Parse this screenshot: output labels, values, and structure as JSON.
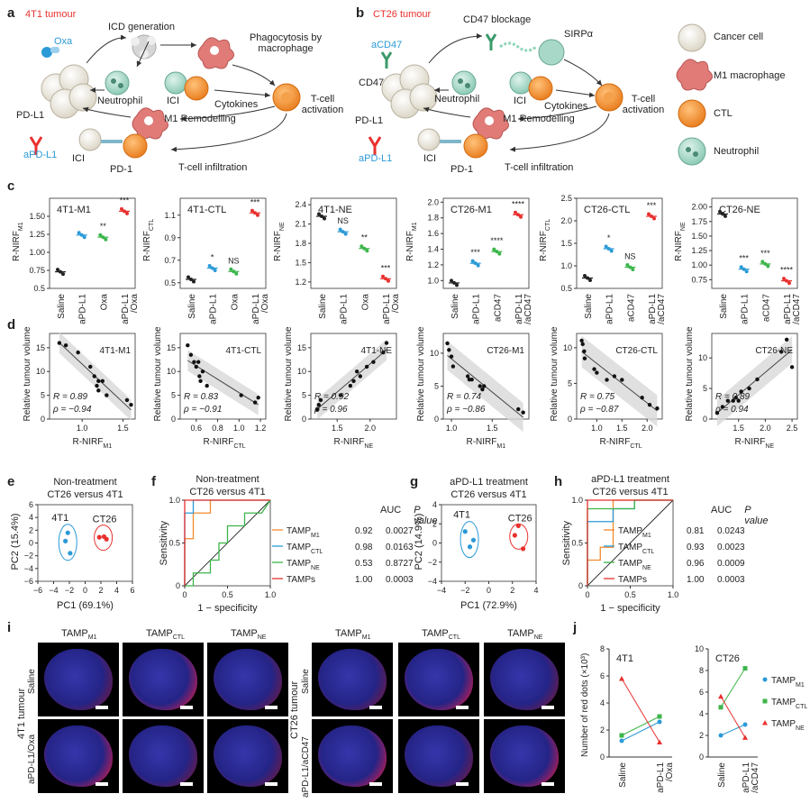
{
  "panel_letters": [
    "a",
    "b",
    "c",
    "d",
    "e",
    "f",
    "g",
    "h",
    "i",
    "j"
  ],
  "panel_a": {
    "title": "4T1 tumour",
    "labels": {
      "oxa": "Oxa",
      "icd": "ICD generation",
      "phago": "Phagocytosis by macrophage",
      "neutrophil": "Neutrophil",
      "ici": "ICI",
      "tcell_act": "T-cell activation",
      "cytokines": "Cytokines",
      "pdl1": "PD-L1",
      "m1": "M1 Remodelling",
      "apdl1": "aPD-L1",
      "ici2": "ICI",
      "pd1": "PD-1",
      "tcell_inf": "T-cell infiltration"
    }
  },
  "panel_b": {
    "title": "CT26 tumour",
    "labels": {
      "cd47block": "CD47 blockage",
      "sirpa": "SIRPα",
      "acd47": "aCD47",
      "cd47": "CD47",
      "neutrophil": "Neutrophil",
      "ici": "ICI",
      "tcell_act": "T-cell activation",
      "cytokines": "Cytokines",
      "pdl1": "PD-L1",
      "m1": "M1 Remodelling",
      "apdl1": "aPD-L1",
      "ici2": "ICI",
      "pd1": "PD-1",
      "tcell_inf": "T-cell infiltration"
    }
  },
  "legend_cells": [
    {
      "label": "Cancer cell",
      "color": "#e9e4d6"
    },
    {
      "label": "M1 macrophage",
      "color": "#e07b78"
    },
    {
      "label": "CTL",
      "color": "#f28a2e"
    },
    {
      "label": "Neutrophil",
      "color": "#a8d8c8"
    }
  ],
  "group_colors": {
    "saline": "#222222",
    "apdl1": "#2b9ad6",
    "agent": "#3cb54a",
    "combo": "#e8312f"
  },
  "chart_data": [
    {
      "type": "scatter",
      "title": "4T1-M1",
      "ylabel": "R-NIRF_M1",
      "ylim": [
        0.5,
        1.75
      ],
      "yticks": [
        "0.5",
        "0.75",
        "1.00",
        "1.25",
        "1.50"
      ],
      "categories": [
        "Saline",
        "aPD-L1",
        "Oxa",
        "aPD-L1 /Oxa"
      ],
      "values": [
        0.73,
        1.24,
        1.21,
        1.57
      ],
      "sig": [
        "",
        "",
        "**",
        "***"
      ]
    },
    {
      "type": "scatter",
      "title": "4T1-CTL",
      "ylabel": "R-NIRF_CTL",
      "ylim": [
        0.45,
        1.25
      ],
      "yticks": [
        "0.5",
        "0.7",
        "0.9",
        "1.1"
      ],
      "categories": [
        "Saline",
        "aPD-L1",
        "Oxa",
        "aPD-L1 /Oxa"
      ],
      "values": [
        0.53,
        0.63,
        0.6,
        1.12
      ],
      "sig": [
        "",
        "*",
        "NS",
        "***"
      ]
    },
    {
      "type": "scatter",
      "title": "4T1-NE",
      "ylabel": "R-NIRF_NE",
      "ylim": [
        1.1,
        2.5
      ],
      "yticks": [
        "1.2",
        "1.5",
        "1.8",
        "2.1",
        "2.4"
      ],
      "categories": [
        "Saline",
        "aPD-L1",
        "Oxa",
        "aPD-L1 /Oxa"
      ],
      "values": [
        2.22,
        1.98,
        1.72,
        1.25
      ],
      "sig": [
        "",
        "NS",
        "**",
        "***"
      ]
    },
    {
      "type": "scatter",
      "title": "CT26-M1",
      "ylabel": "R-NIRF_M1",
      "ylim": [
        0.9,
        2.05
      ],
      "yticks": [
        "1.0",
        "1.2",
        "1.4",
        "1.6",
        "1.8",
        "2.0"
      ],
      "categories": [
        "Saline",
        "aPD-L1",
        "aCD47",
        "aPD-L1 /aCD47"
      ],
      "values": [
        0.97,
        1.22,
        1.37,
        1.84
      ],
      "sig": [
        "",
        "***",
        "****",
        "****"
      ]
    },
    {
      "type": "scatter",
      "title": "CT26-CTL",
      "ylabel": "R-NIRF_CTL",
      "ylim": [
        0.5,
        2.5
      ],
      "yticks": [
        "0.5",
        "1.0",
        "1.5",
        "2.0",
        "2.5"
      ],
      "categories": [
        "Saline",
        "aPD-L1",
        "aCD47",
        "aPD-L1 /aCD47"
      ],
      "values": [
        0.73,
        1.38,
        0.97,
        2.1
      ],
      "sig": [
        "",
        "*",
        "NS",
        "***"
      ]
    },
    {
      "type": "scatter",
      "title": "CT26-NE",
      "ylabel": "R-NIRF_NE",
      "ylim": [
        0.6,
        2.15
      ],
      "yticks": [
        "0.75",
        "1.00",
        "1.25",
        "1.50",
        "1.75",
        "2.00"
      ],
      "categories": [
        "Saline",
        "aPD-L1",
        "aCD47",
        "aPD-L1 /aCD47"
      ],
      "values": [
        1.88,
        0.93,
        1.02,
        0.73
      ],
      "sig": [
        "",
        "***",
        "***",
        "****"
      ]
    },
    {
      "type": "scatter",
      "title": "4T1-M1",
      "xlabel": "R-NIRF_M1",
      "ylabel": "Relative tumour volume",
      "xlim": [
        0.6,
        1.65
      ],
      "ylim": [
        0,
        18
      ],
      "xticks": [
        "1.0",
        "1.5"
      ],
      "yticks": [
        "0",
        "5",
        "10",
        "15"
      ],
      "x": [
        0.72,
        0.8,
        0.95,
        1.1,
        1.15,
        1.18,
        1.2,
        1.2,
        1.25,
        1.3,
        1.55,
        1.6
      ],
      "y": [
        16,
        15.5,
        14,
        11,
        9,
        7,
        8,
        6,
        8,
        5,
        4,
        3
      ],
      "R": "R = 0.89",
      "rho": "ρ = −0.94"
    },
    {
      "type": "scatter",
      "title": "4T1-CTL",
      "xlabel": "R-NIRF_CTL",
      "ylabel": "Relative tumour volume",
      "xlim": [
        0.45,
        1.25
      ],
      "ylim": [
        0,
        18
      ],
      "xticks": [
        "0.6",
        "0.8",
        "1.0",
        "1.2"
      ],
      "yticks": [
        "0",
        "5",
        "10",
        "15"
      ],
      "x": [
        0.52,
        0.55,
        0.58,
        0.6,
        0.62,
        0.63,
        0.64,
        0.66,
        0.7,
        1.02,
        1.15,
        1.18
      ],
      "y": [
        15.5,
        13.5,
        12,
        11,
        12,
        9,
        8,
        10,
        7,
        5,
        3.5,
        4.5
      ],
      "R": "R = 0.83",
      "rho": "ρ = −0.91"
    },
    {
      "type": "scatter",
      "title": "4T1-NE",
      "xlabel": "R-NIRF_NE",
      "ylabel": "Relative tumour volume",
      "xlim": [
        1.1,
        2.4
      ],
      "ylim": [
        0,
        18
      ],
      "xticks": [
        "1.5",
        "2.0"
      ],
      "yticks": [
        "0",
        "5",
        "10",
        "15"
      ],
      "x": [
        1.2,
        1.22,
        1.25,
        1.55,
        1.7,
        1.75,
        1.8,
        1.85,
        1.95,
        2.05,
        2.2,
        2.25
      ],
      "y": [
        2,
        3,
        4,
        5,
        7,
        8,
        10,
        9,
        11,
        12,
        14,
        16
      ],
      "R": "R = 0.92",
      "rho": "ρ = 0.96"
    },
    {
      "type": "scatter",
      "title": "CT26-M1",
      "xlabel": "R-NIRF_M1",
      "ylabel": "Relative tumour volume",
      "xlim": [
        0.9,
        1.95
      ],
      "ylim": [
        0,
        13
      ],
      "xticks": [
        "1.0",
        "1.5"
      ],
      "yticks": [
        "0",
        "5",
        "10"
      ],
      "x": [
        0.95,
        0.97,
        1.0,
        1.02,
        1.2,
        1.22,
        1.25,
        1.35,
        1.38,
        1.4,
        1.82,
        1.88
      ],
      "y": [
        11.5,
        10.5,
        9.5,
        8,
        6.5,
        6,
        6,
        5,
        4.5,
        5,
        1.5,
        1
      ],
      "R": "R = 0.74",
      "rho": "ρ = −0.86"
    },
    {
      "type": "scatter",
      "title": "CT26-CTL",
      "xlabel": "R-NIRF_CTL",
      "ylabel": "Relative tumour volume",
      "xlim": [
        0.6,
        2.3
      ],
      "ylim": [
        0,
        12
      ],
      "xticks": [
        "1.0",
        "1.5",
        "2.0"
      ],
      "yticks": [
        "0",
        "5",
        "10"
      ],
      "x": [
        0.7,
        0.72,
        0.75,
        0.76,
        0.95,
        1.0,
        1.2,
        1.35,
        1.5,
        1.9,
        2.05,
        2.2
      ],
      "y": [
        11,
        10.5,
        9.5,
        8.5,
        7,
        6.5,
        5.5,
        6,
        5.5,
        3,
        2,
        1.5
      ],
      "R": "R = 0.75",
      "rho": "ρ = −0.87"
    },
    {
      "type": "scatter",
      "title": "CT26-NE",
      "xlabel": "R-NIRF_NE",
      "ylabel": "Relative tumour volume",
      "xlim": [
        1.0,
        2.6
      ],
      "ylim": [
        0,
        14
      ],
      "xticks": [
        "1.5",
        "2.0",
        "2.5"
      ],
      "yticks": [
        "0",
        "5",
        "10"
      ],
      "x": [
        1.1,
        1.2,
        1.3,
        1.4,
        1.45,
        1.5,
        1.55,
        1.7,
        1.85,
        2.3,
        2.4,
        2.5
      ],
      "y": [
        1,
        2,
        3,
        3,
        3.5,
        3,
        4.5,
        5,
        6.5,
        11,
        13,
        8.5
      ],
      "R": "R = 0.89",
      "rho": "ρ = 0.94"
    },
    {
      "type": "scatter",
      "title": "Non-treatment CT26 versus 4T1",
      "xlabel": "PC1 (69.1%)",
      "ylabel": "PC2 (15.4%)",
      "xlim": [
        -6,
        6
      ],
      "ylim": [
        -6,
        6
      ],
      "xticks": [
        "−6",
        "−4",
        "−2",
        "0",
        "2",
        "4",
        "6"
      ],
      "yticks": [
        "−6",
        "−4",
        "−2",
        "0",
        "2",
        "4",
        "6"
      ],
      "series": [
        {
          "name": "4T1",
          "x": [
            -2.2,
            -1.9,
            -2.5
          ],
          "y": [
            1.6,
            -1.6,
            0.3
          ]
        },
        {
          "name": "CT26",
          "x": [
            1.8,
            2.4,
            2.7
          ],
          "y": [
            0.9,
            1.0,
            0.6
          ]
        }
      ]
    },
    {
      "type": "line",
      "title": "Non-treatment CT26 versus 4T1",
      "xlabel": "1 − specificity",
      "ylabel": "Sensitivity",
      "xlim": [
        0,
        1
      ],
      "ylim": [
        0,
        1
      ],
      "xticks": [
        "0",
        "0.5",
        "1.0"
      ],
      "yticks": [
        "0",
        "0.5",
        "1.0"
      ],
      "series": [
        {
          "name": "TAMP_M1",
          "auc": "0.92",
          "p": "0.0027"
        },
        {
          "name": "TAMP_CTL",
          "auc": "0.98",
          "p": "0.0163"
        },
        {
          "name": "TAMP_NE",
          "auc": "0.53",
          "p": "0.8727"
        },
        {
          "name": "TAMPs",
          "auc": "1.00",
          "p": "0.0003"
        }
      ]
    },
    {
      "type": "scatter",
      "title": "aPD-L1 treatment CT26 versus 4T1",
      "xlabel": "PC1 (72.9%)",
      "ylabel": "PC2 (14.9%)",
      "xlim": [
        -4,
        4
      ],
      "ylim": [
        -4,
        4
      ],
      "xticks": [
        "−4",
        "−2",
        "0",
        "2",
        "4"
      ],
      "yticks": [
        "−4",
        "−2",
        "0",
        "2",
        "4"
      ],
      "series": [
        {
          "name": "4T1",
          "x": [
            -2.0,
            -1.6,
            -1.3
          ],
          "y": [
            1.2,
            -0.4,
            0.3
          ]
        },
        {
          "name": "CT26",
          "x": [
            2.5,
            2.9,
            2.2
          ],
          "y": [
            1.8,
            -0.6,
            0.8
          ]
        }
      ]
    },
    {
      "type": "line",
      "title": "aPD-L1 treatment CT26 versus 4T1",
      "xlabel": "1 − specificity",
      "ylabel": "Sensitivity",
      "xlim": [
        0,
        1
      ],
      "ylim": [
        0,
        1
      ],
      "xticks": [
        "0",
        "0.5",
        "1.0"
      ],
      "yticks": [
        "0",
        "0.5",
        "1.0"
      ],
      "series": [
        {
          "name": "TAMP_M1",
          "auc": "0.81",
          "p": "0.0243"
        },
        {
          "name": "TAMP_CTL",
          "auc": "0.93",
          "p": "0.0023"
        },
        {
          "name": "TAMP_NE",
          "auc": "0.96",
          "p": "0.0009"
        },
        {
          "name": "TAMPs",
          "auc": "1.00",
          "p": "0.0003"
        }
      ]
    },
    {
      "type": "line",
      "title": "4T1",
      "ylabel": "Number of red dots (×10³)",
      "ylim": [
        0,
        8
      ],
      "yticks": [
        "0",
        "2",
        "4",
        "6",
        "8"
      ],
      "categories": [
        "Saline",
        "aPD-L1 /Oxa"
      ],
      "series": [
        {
          "name": "TAMP_M1",
          "values": [
            1.2,
            2.6
          ]
        },
        {
          "name": "TAMP_CTL",
          "values": [
            1.6,
            3.0
          ]
        },
        {
          "name": "TAMP_NE",
          "values": [
            5.8,
            1.1
          ]
        }
      ]
    },
    {
      "type": "line",
      "title": "CT26",
      "ylabel": "",
      "ylim": [
        0,
        10
      ],
      "yticks": [
        "0",
        "2",
        "4",
        "6",
        "8",
        "10"
      ],
      "categories": [
        "Saline",
        "aPD-L1 /aCD47"
      ],
      "series": [
        {
          "name": "TAMP_M1",
          "values": [
            2.0,
            3.0
          ]
        },
        {
          "name": "TAMP_CTL",
          "values": [
            4.6,
            8.2
          ]
        },
        {
          "name": "TAMP_NE",
          "values": [
            5.6,
            1.8
          ]
        }
      ]
    }
  ],
  "panel_i": {
    "col_headers": [
      "TAMP_M1",
      "TAMP_CTL",
      "TAMP_NE"
    ],
    "left_side": "4T1 tumour",
    "right_side": "CT26 tumour",
    "left_rows": [
      "Saline",
      "aPD-L1/Oxa"
    ],
    "right_rows": [
      "Saline",
      "aPD-L1/aCD47"
    ]
  },
  "roc_table_head": [
    "AUC",
    "P value"
  ]
}
